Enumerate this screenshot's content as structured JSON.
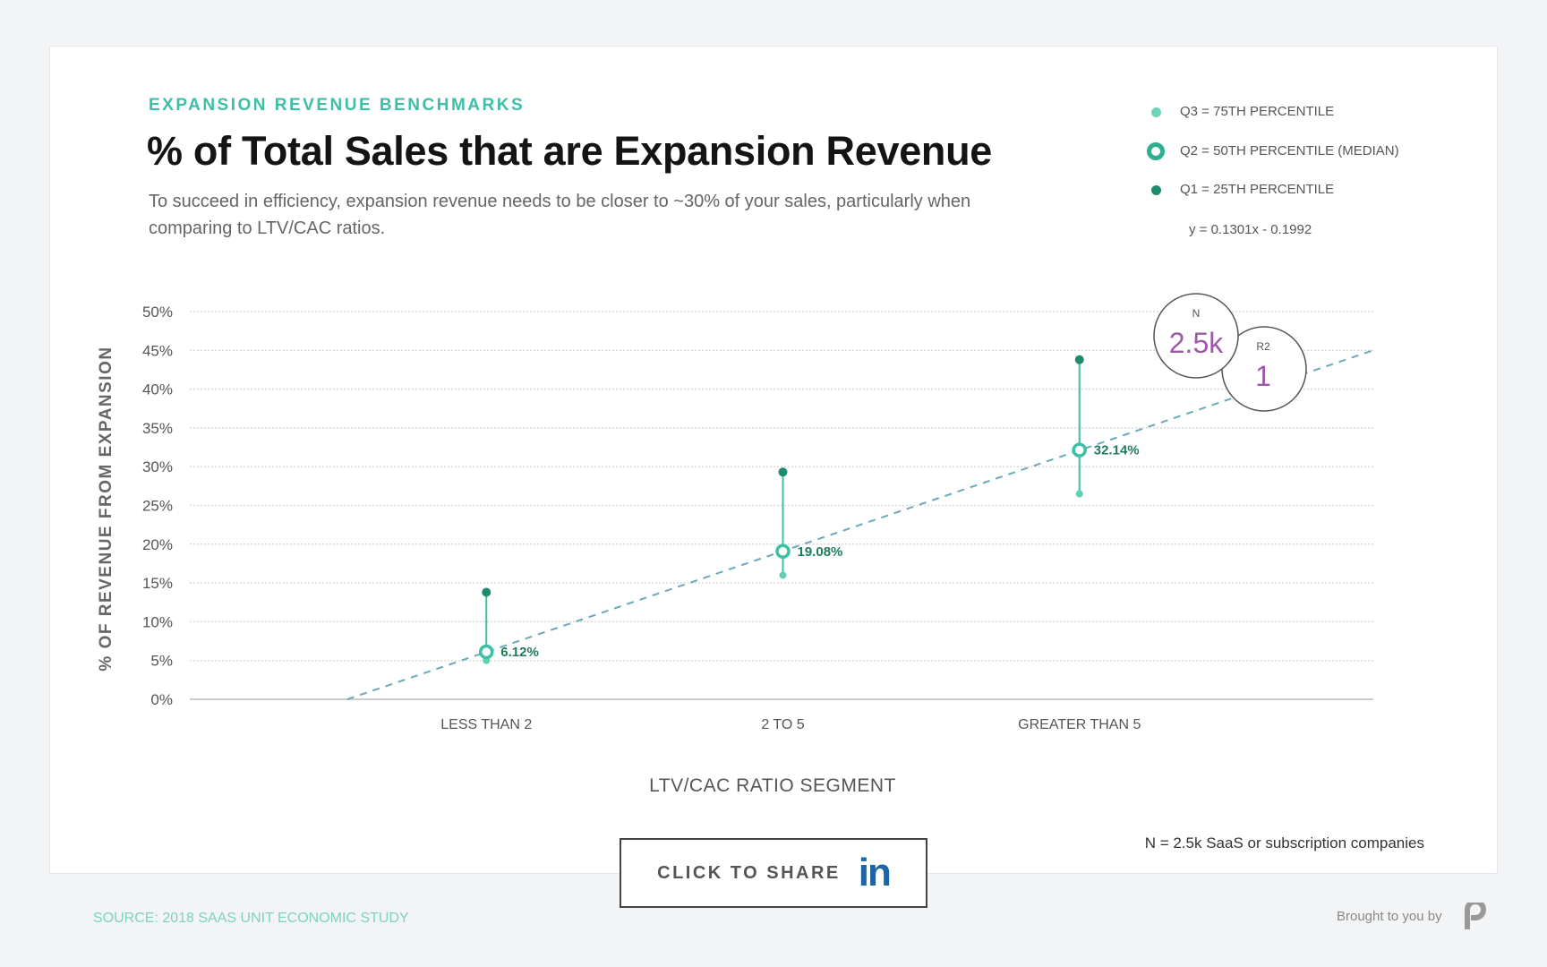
{
  "header": {
    "eyebrow": "EXPANSION REVENUE BENCHMARKS",
    "title": "% of Total Sales that are Expansion Revenue",
    "subtitle": "To succeed in efficiency, expansion revenue needs to be closer to ~30% of your sales, particularly when comparing to LTV/CAC ratios."
  },
  "legend": {
    "items": [
      {
        "label": "Q3 = 75TH PERCENTILE",
        "color": "#6fd3bb",
        "marker": "dot"
      },
      {
        "label": "Q2 = 50TH PERCENTILE (MEDIAN)",
        "color": "#2fae92",
        "marker": "ring"
      },
      {
        "label": "Q1 = 25TH PERCENTILE",
        "color": "#1e8a6e",
        "marker": "dot"
      }
    ],
    "equation": "y = 0.1301x - 0.1992"
  },
  "stats": {
    "n_label": "N",
    "n_value": "2.5k",
    "r2_label": "R2",
    "r2_value": "1",
    "color": "#9b59a8"
  },
  "chart_data": {
    "type": "scatter",
    "ylabel": "% OF REVENUE FROM EXPANSION",
    "xlabel": "LTV/CAC RATIO SEGMENT",
    "ylim": [
      0,
      50
    ],
    "yticks": [
      "0%",
      "5%",
      "10%",
      "15%",
      "20%",
      "25%",
      "30%",
      "35%",
      "40%",
      "45%",
      "50%"
    ],
    "xlim": [
      1,
      5
    ],
    "grid": true,
    "categories": [
      {
        "label": "LESS THAN 2",
        "x": 2,
        "upper": 13.8,
        "median": 6.12,
        "lower": 5.0,
        "median_label": "6.12%"
      },
      {
        "label": "2 TO 5",
        "x": 3,
        "upper": 29.3,
        "median": 19.08,
        "lower": 16.0,
        "median_label": "19.08%"
      },
      {
        "label": "GREATER THAN 5",
        "x": 4,
        "upper": 43.8,
        "median": 32.14,
        "lower": 26.5,
        "median_label": "32.14%"
      }
    ],
    "trendline": {
      "slope": 0.1301,
      "intercept": -0.1992,
      "x_range": [
        1.531,
        4.99
      ]
    },
    "colors": {
      "line": "#3cc0a6",
      "upper": "#1e8a6e",
      "lower": "#5fd0b4",
      "trend": "#6aa9b8",
      "label": "#1f7a60"
    }
  },
  "footnote": "N = 2.5k SaaS or subscription companies",
  "share": {
    "label": "CLICK TO SHARE",
    "icon_text": "in"
  },
  "footer": {
    "source": "SOURCE: 2018 SAAS UNIT ECONOMIC STUDY",
    "brought": "Brought to you by"
  }
}
